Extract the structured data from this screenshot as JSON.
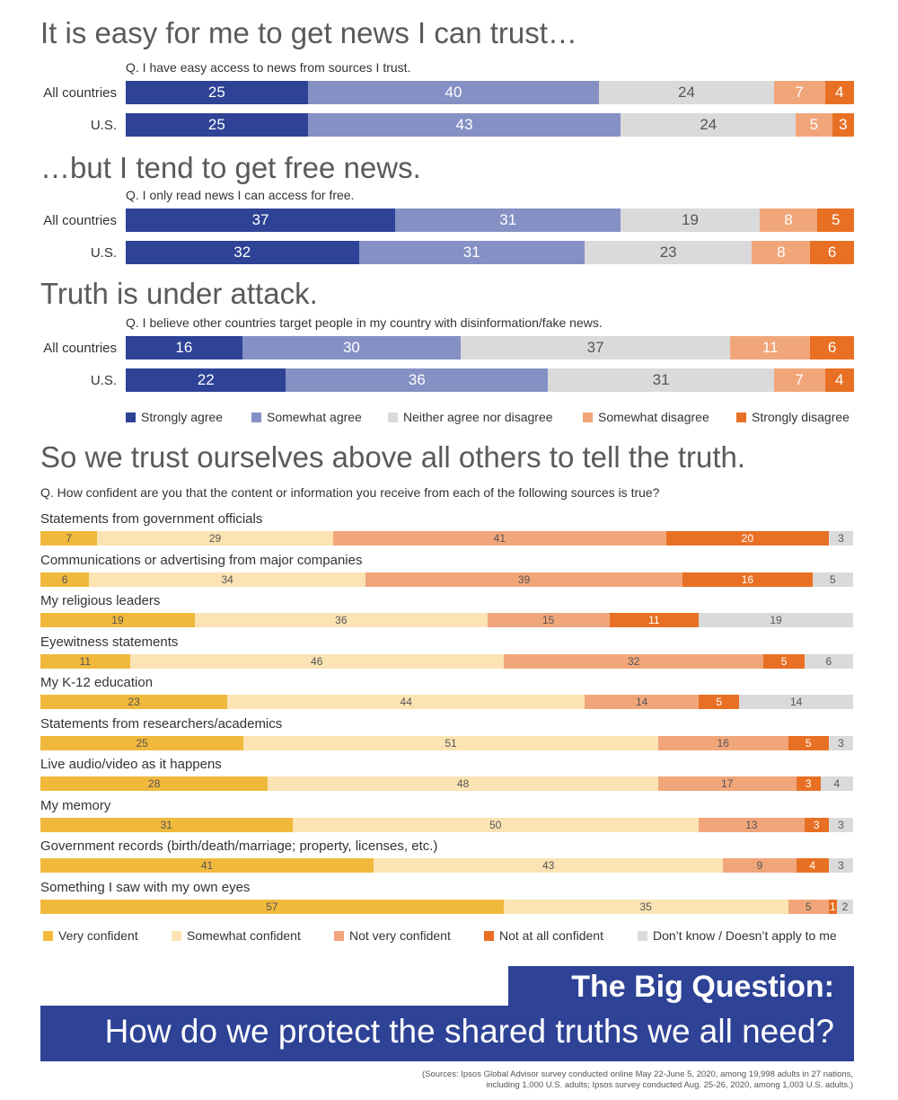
{
  "headings": {
    "h1": "It is easy for me to get news I can trust…",
    "h2": "…but I tend to get free news.",
    "h3": "Truth is under attack.",
    "h4": "So we trust ourselves above all others to tell the truth."
  },
  "questions": {
    "q1": "Q. I have easy access to news from sources I trust.",
    "q2": "Q. I only read news I can access for free.",
    "q3": "Q. I believe other countries target people in my country with disinformation/fake news.",
    "q4": "Q. How confident are you that the content or information you receive from each of the following sources is true?"
  },
  "agree_legend": [
    {
      "label": "Strongly agree",
      "color": "#2e4296"
    },
    {
      "label": "Somewhat agree",
      "color": "#8590c4"
    },
    {
      "label": "Neither agree nor disagree",
      "color": "#dadada"
    },
    {
      "label": "Somewhat disagree",
      "color": "#f1a67a"
    },
    {
      "label": "Strongly disagree",
      "color": "#e87024"
    }
  ],
  "confidence_legend": [
    {
      "label": "Very confident",
      "color": "#f0b93c"
    },
    {
      "label": "Somewhat confident",
      "color": "#fbe3b3"
    },
    {
      "label": "Not very confident",
      "color": "#f1a67a"
    },
    {
      "label": "Not at all confident",
      "color": "#e87024"
    },
    {
      "label": "Don’t know / Doesn’t apply to me",
      "color": "#dadada"
    }
  ],
  "chart_data": [
    {
      "type": "bar",
      "stacked": true,
      "orientation": "horizontal",
      "title": "It is easy for me to get news I can trust…",
      "categories": [
        "All countries",
        "U.S."
      ],
      "series": [
        {
          "name": "Strongly agree",
          "values": [
            25,
            25
          ]
        },
        {
          "name": "Somewhat agree",
          "values": [
            40,
            43
          ]
        },
        {
          "name": "Neither agree nor disagree",
          "values": [
            24,
            24
          ]
        },
        {
          "name": "Somewhat disagree",
          "values": [
            7,
            5
          ]
        },
        {
          "name": "Strongly disagree",
          "values": [
            4,
            3
          ]
        }
      ]
    },
    {
      "type": "bar",
      "stacked": true,
      "orientation": "horizontal",
      "title": "…but I tend to get free news.",
      "categories": [
        "All countries",
        "U.S."
      ],
      "series": [
        {
          "name": "Strongly agree",
          "values": [
            37,
            32
          ]
        },
        {
          "name": "Somewhat agree",
          "values": [
            31,
            31
          ]
        },
        {
          "name": "Neither agree nor disagree",
          "values": [
            19,
            23
          ]
        },
        {
          "name": "Somewhat disagree",
          "values": [
            8,
            8
          ]
        },
        {
          "name": "Strongly disagree",
          "values": [
            5,
            6
          ]
        }
      ]
    },
    {
      "type": "bar",
      "stacked": true,
      "orientation": "horizontal",
      "title": "Truth is under attack.",
      "categories": [
        "All countries",
        "U.S."
      ],
      "series": [
        {
          "name": "Strongly agree",
          "values": [
            16,
            22
          ]
        },
        {
          "name": "Somewhat agree",
          "values": [
            30,
            36
          ]
        },
        {
          "name": "Neither agree nor disagree",
          "values": [
            37,
            31
          ]
        },
        {
          "name": "Somewhat disagree",
          "values": [
            11,
            7
          ]
        },
        {
          "name": "Strongly disagree",
          "values": [
            6,
            4
          ]
        }
      ]
    },
    {
      "type": "bar",
      "stacked": true,
      "orientation": "horizontal",
      "title": "So we trust ourselves above all others to tell the truth.",
      "categories": [
        "Statements from government officials",
        "Communications or advertising from major companies",
        "My religious leaders",
        "Eyewitness statements",
        "My K-12 education",
        "Statements from researchers/academics",
        "Live audio/video as it happens",
        "My memory",
        "Government records (birth/death/marriage; property, licenses, etc.)",
        "Something I saw with my own eyes"
      ],
      "series": [
        {
          "name": "Very confident",
          "values": [
            7,
            6,
            19,
            11,
            23,
            25,
            28,
            31,
            41,
            57
          ]
        },
        {
          "name": "Somewhat confident",
          "values": [
            29,
            34,
            36,
            46,
            44,
            51,
            48,
            50,
            43,
            35
          ]
        },
        {
          "name": "Not very confident",
          "values": [
            41,
            39,
            15,
            32,
            14,
            16,
            17,
            13,
            9,
            5
          ]
        },
        {
          "name": "Not at all confident",
          "values": [
            20,
            16,
            11,
            5,
            5,
            5,
            3,
            3,
            4,
            1
          ]
        },
        {
          "name": "Don’t know / Doesn’t apply to me",
          "values": [
            3,
            5,
            19,
            6,
            14,
            3,
            4,
            3,
            3,
            2
          ]
        }
      ]
    }
  ],
  "big_question": {
    "title": "The Big Question:",
    "subtitle": "How do we protect the shared truths we all need?"
  },
  "source_lines": [
    "(Sources: Ipsos Global Advisor survey conducted online May 22-June 5, 2020, among 19,998 adults in 27 nations,",
    "including 1,000 U.S. adults; Ipsos survey conducted Aug. 25-26, 2020, among 1,003 U.S. adults.)"
  ]
}
